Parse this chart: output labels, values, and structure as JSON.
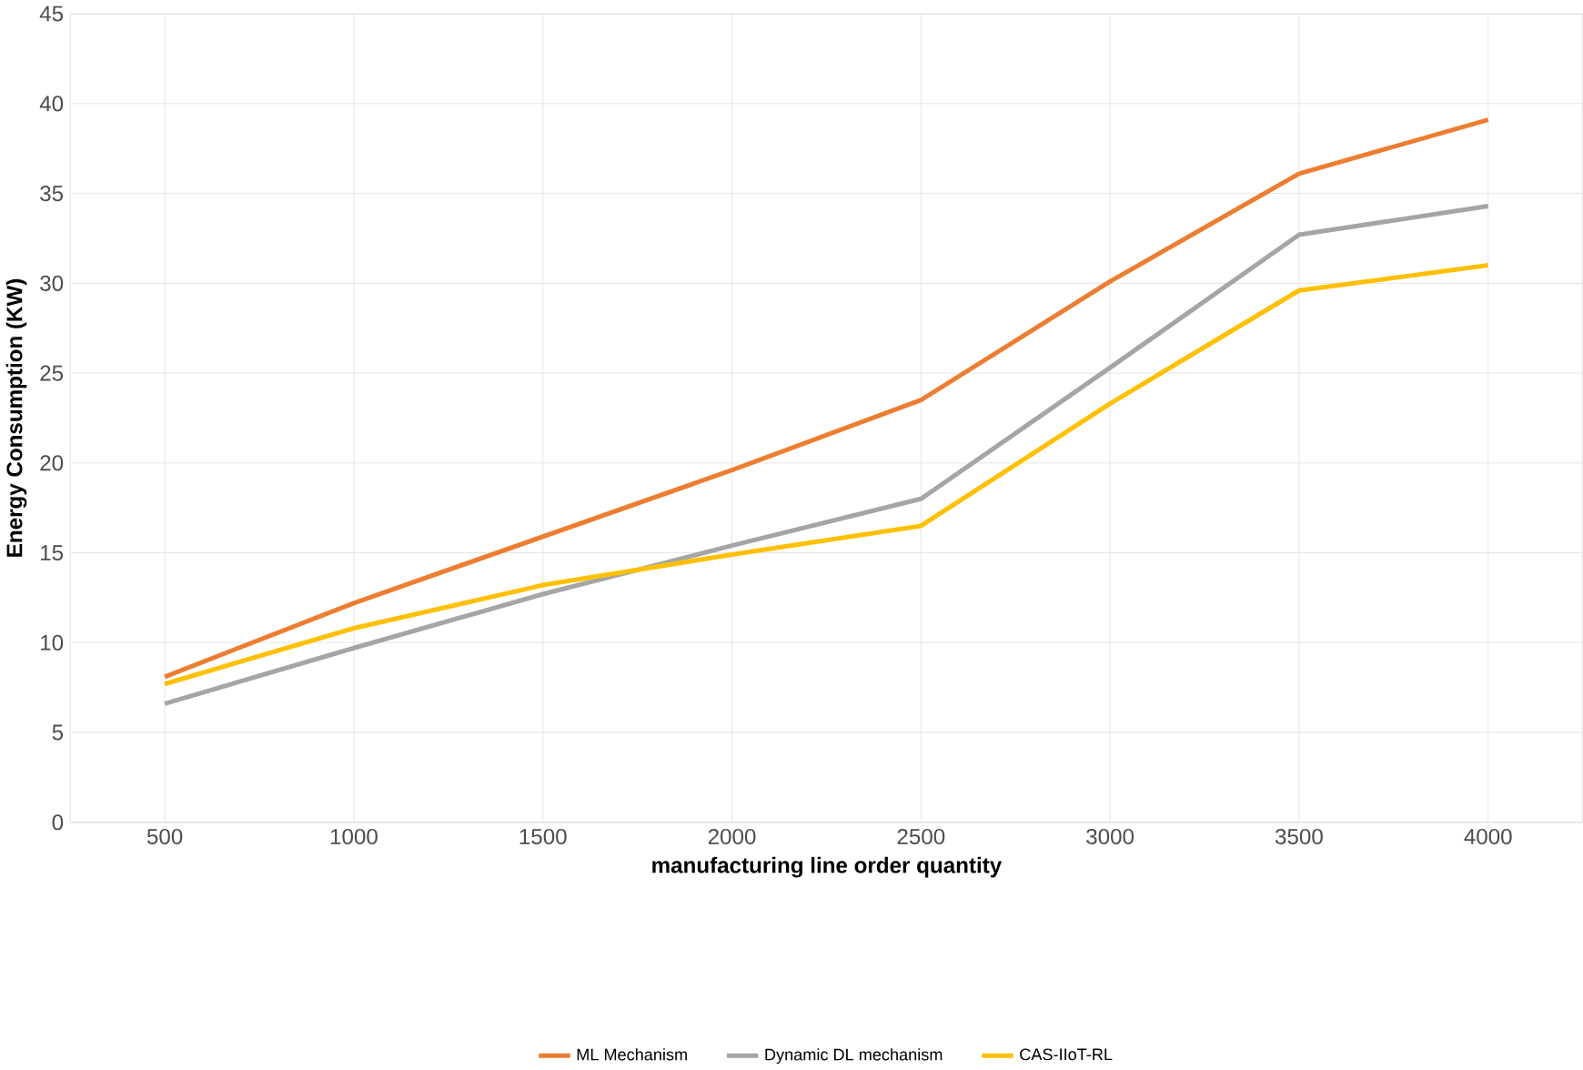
{
  "chart_data": {
    "type": "line",
    "xlabel": "manufacturing line order quantity",
    "ylabel": "Energy Consumption (KW)",
    "categories": [
      "500",
      "1000",
      "1500",
      "2000",
      "2500",
      "3000",
      "3500",
      "4000"
    ],
    "series": [
      {
        "name": "ML  Mechanism",
        "color": "#ed7d31",
        "values": [
          8.1,
          12.2,
          15.9,
          19.6,
          23.5,
          30.1,
          36.1,
          39.1
        ]
      },
      {
        "name": "Dynamic DL mechanism",
        "color": "#a5a5a5",
        "values": [
          6.6,
          9.7,
          12.7,
          15.4,
          18.0,
          25.3,
          32.7,
          34.3
        ]
      },
      {
        "name": "CAS-IIoT-RL",
        "color": "#ffc000",
        "values": [
          7.7,
          10.8,
          13.2,
          14.9,
          16.5,
          23.3,
          29.6,
          31.0
        ]
      }
    ],
    "ylim": [
      0,
      45
    ],
    "yticks": [
      0,
      5,
      10,
      15,
      20,
      25,
      30,
      35,
      40,
      45
    ],
    "grid": true,
    "legend": "bottom",
    "marker": "none",
    "line_style": "solid"
  }
}
